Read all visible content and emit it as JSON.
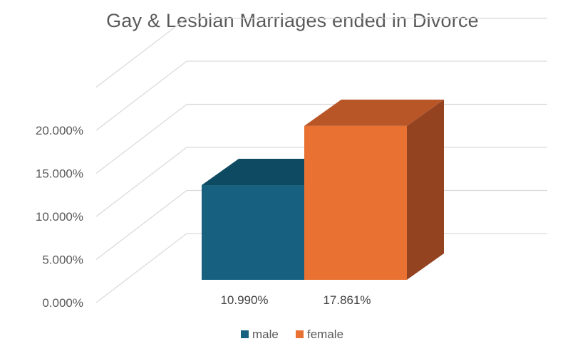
{
  "chart_data": {
    "type": "bar",
    "title": "Gay & Lesbian Marriages ended in Divorce",
    "categories": [
      "male",
      "female"
    ],
    "values": [
      10.99,
      17.861
    ],
    "data_labels": [
      "10.990%",
      "17.861%"
    ],
    "y_ticks": [
      "0.000%",
      "5.000%",
      "10.000%",
      "15.000%",
      "20.000%"
    ],
    "ylim": [
      0,
      20
    ],
    "grid": true,
    "three_d": true,
    "legend_position": "bottom",
    "legend": [
      "male",
      "female"
    ],
    "colors": {
      "male": "#17607f",
      "male_top": "#0f4a63",
      "female": "#e97132",
      "female_top": "#b85628",
      "female_side": "#944321"
    }
  }
}
